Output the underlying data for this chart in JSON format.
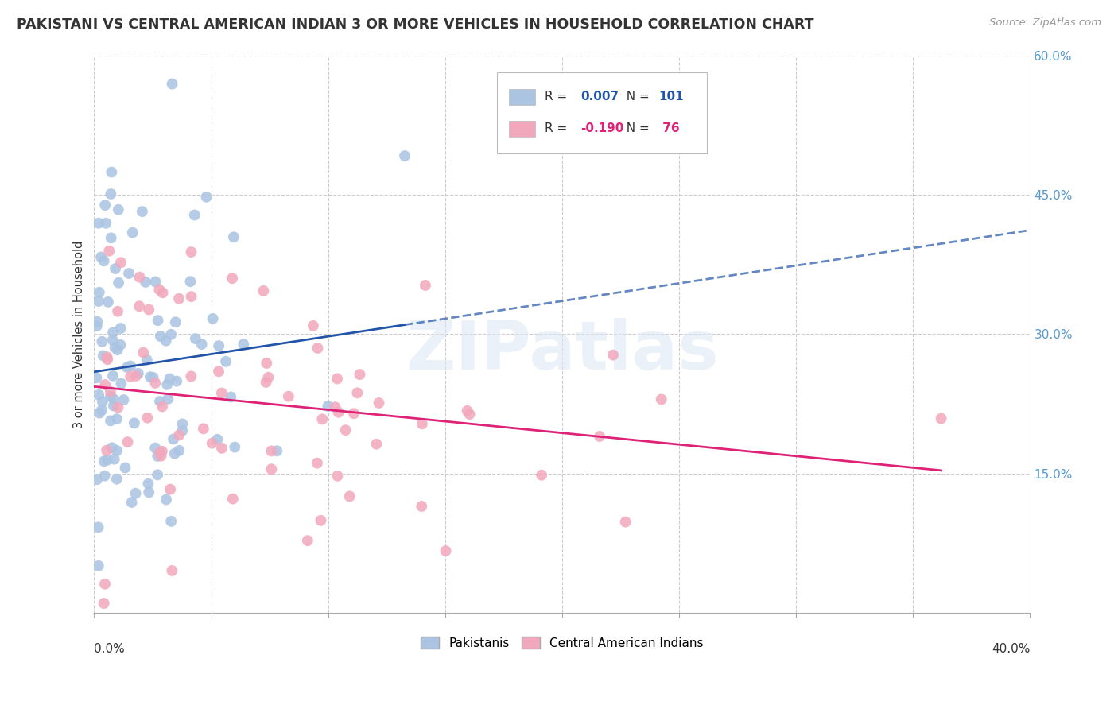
{
  "title": "PAKISTANI VS CENTRAL AMERICAN INDIAN 3 OR MORE VEHICLES IN HOUSEHOLD CORRELATION CHART",
  "source": "Source: ZipAtlas.com",
  "ylabel": "3 or more Vehicles in Household",
  "legend_label_blue": "Pakistanis",
  "legend_label_pink": "Central American Indians",
  "blue_color": "#aac4e2",
  "pink_color": "#f2a8bc",
  "blue_line_color": "#2255aa",
  "pink_line_color": "#dd2277",
  "blue_r": 0.007,
  "blue_n": 101,
  "pink_r": -0.19,
  "pink_n": 76,
  "xlim": [
    0.0,
    0.4
  ],
  "ylim": [
    0.0,
    0.6
  ],
  "watermark": "ZIPatlas",
  "legend_r_blue": "0.007",
  "legend_r_pink": "-0.190",
  "legend_n_blue": "101",
  "legend_n_pink": " 76"
}
